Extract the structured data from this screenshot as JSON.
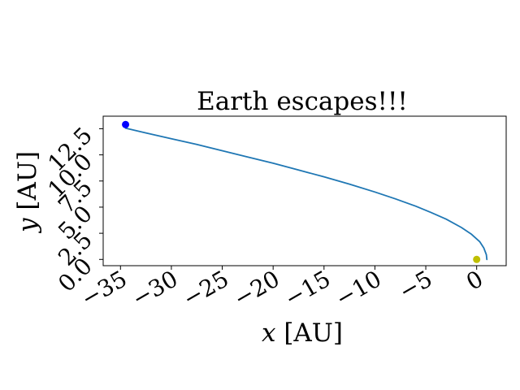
{
  "chart_data": {
    "type": "line",
    "title": "Earth escapes!!!",
    "xlabel_var": "x",
    "xlabel_unit": "[AU]",
    "ylabel_var": "y",
    "ylabel_unit": "[AU]",
    "xlim": [
      -36.7,
      2.9
    ],
    "ylim": [
      -0.6,
      13.7
    ],
    "x_ticks": [
      -35,
      -30,
      -25,
      -20,
      -15,
      -10,
      -5,
      0
    ],
    "x_tick_labels": [
      "−35",
      "−30",
      "−25",
      "−20",
      "−15",
      "−10",
      "−5",
      "0"
    ],
    "y_ticks": [
      0.0,
      2.5,
      5.0,
      7.5,
      10.0,
      12.5
    ],
    "y_tick_labels": [
      "0.0",
      "2.5",
      "5.0",
      "7.5",
      "10.0",
      "12.5"
    ],
    "grid": false,
    "series": [
      {
        "color": "#1f77b4",
        "x": [
          1.0,
          0.95,
          0.7,
          0.3,
          -0.5,
          -1.5,
          -3.0,
          -4.5,
          -6.0,
          -8.0,
          -10.0,
          -12.5,
          -15.0,
          -17.5,
          -20.0,
          -22.5,
          -25.0,
          -27.5,
          -30.0,
          -32.5,
          -34.5
        ],
        "y": [
          0.0,
          0.45,
          1.1,
          1.7,
          2.4,
          3.05,
          3.85,
          4.5,
          5.1,
          5.8,
          6.45,
          7.2,
          7.9,
          8.55,
          9.2,
          9.8,
          10.4,
          11.0,
          11.55,
          12.1,
          12.55
        ]
      }
    ],
    "markers": [
      {
        "name": "Earth",
        "x": -34.5,
        "y": 12.9,
        "color": "#0000ff"
      },
      {
        "name": "Sun",
        "x": 0.0,
        "y": 0.0,
        "color": "#bfbf00"
      }
    ]
  }
}
